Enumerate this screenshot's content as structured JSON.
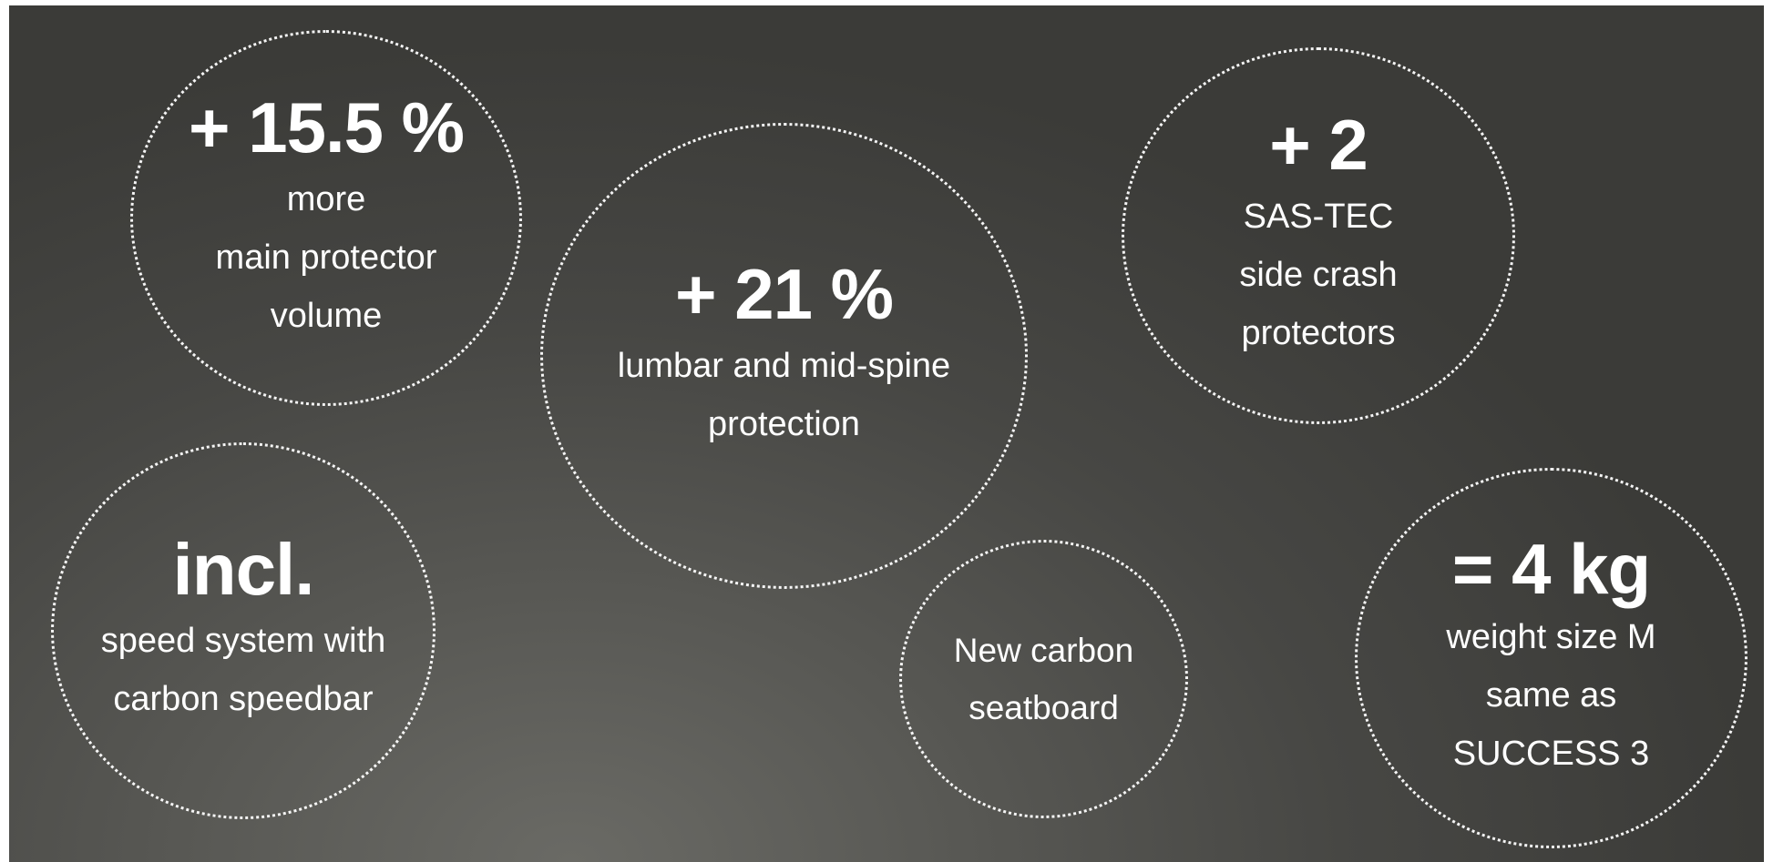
{
  "bubbles": [
    {
      "headline": "+ 15.5 %",
      "lines": [
        "more",
        "main protector",
        "volume"
      ]
    },
    {
      "headline": "+ 21 %",
      "lines": [
        "lumbar and mid-spine",
        "protection"
      ]
    },
    {
      "headline": "+ 2",
      "lines": [
        "SAS-TEC",
        "side crash",
        "protectors"
      ]
    },
    {
      "headline": "incl.",
      "lines": [
        "speed system with",
        "carbon speedbar"
      ]
    },
    {
      "headline": "",
      "lines": [
        "New carbon",
        "seatboard"
      ]
    },
    {
      "headline": "= 4 kg",
      "lines": [
        "weight size M",
        "same as",
        "SUCCESS 3"
      ]
    }
  ],
  "colors": {
    "background": "#474744",
    "text": "#ffffff",
    "dotted_border": "#ffffff"
  }
}
